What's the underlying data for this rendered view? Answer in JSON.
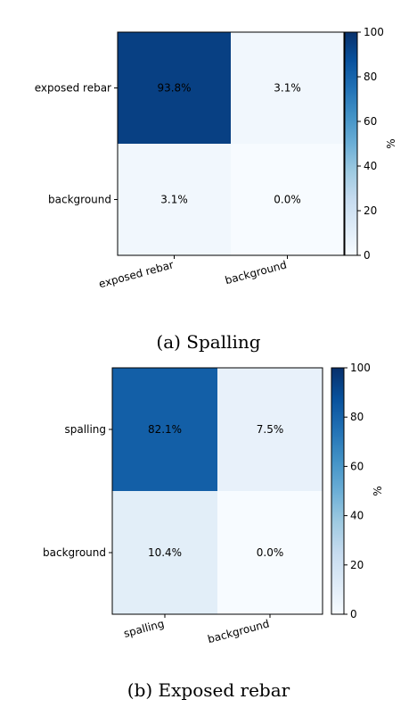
{
  "colormap": [
    "#f7fbff",
    "#deebf7",
    "#c6dbef",
    "#9ecae1",
    "#6baed6",
    "#4292c6",
    "#2171b5",
    "#08519c",
    "#08306b"
  ],
  "chart_data": [
    {
      "type": "heatmap",
      "caption": "(a) Spalling",
      "row_labels": [
        "exposed rebar",
        "background"
      ],
      "col_labels": [
        "exposed rebar",
        "background"
      ],
      "cells": [
        [
          "93.8%",
          "3.1%"
        ],
        [
          "3.1%",
          "0.0%"
        ]
      ],
      "values": [
        [
          93.8,
          3.1
        ],
        [
          3.1,
          0.0
        ]
      ],
      "colorbar": {
        "label": "%",
        "range": [
          0,
          100
        ],
        "ticks": [
          0,
          20,
          40,
          60,
          80,
          100
        ]
      }
    },
    {
      "type": "heatmap",
      "caption": "(b) Exposed rebar",
      "row_labels": [
        "spalling",
        "background"
      ],
      "col_labels": [
        "spalling",
        "background"
      ],
      "cells": [
        [
          "82.1%",
          "7.5%"
        ],
        [
          "10.4%",
          "0.0%"
        ]
      ],
      "values": [
        [
          82.1,
          7.5
        ],
        [
          10.4,
          0.0
        ]
      ],
      "colorbar": {
        "label": "%",
        "range": [
          0,
          100
        ],
        "ticks": [
          0,
          20,
          40,
          60,
          80,
          100
        ]
      }
    }
  ]
}
